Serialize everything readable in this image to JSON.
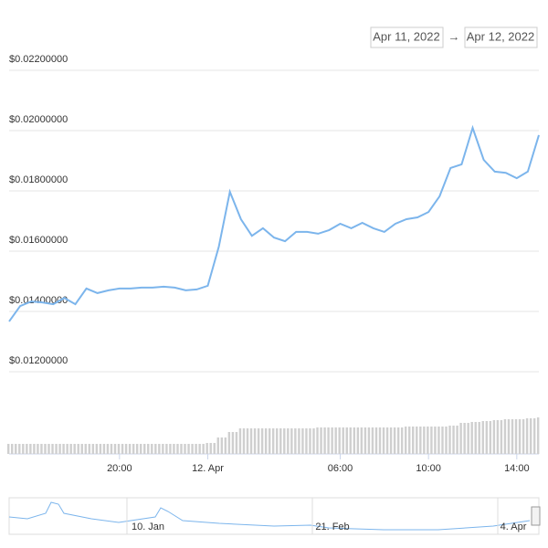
{
  "range": {
    "from": "Apr 11, 2022",
    "arrow": "→",
    "to": "Apr 12, 2022"
  },
  "chart_data": {
    "type": "line",
    "color": "#7cb5ec",
    "volume_color": "#cfcfcf",
    "categories": [
      null,
      null,
      null,
      null,
      null,
      null,
      null,
      null,
      null,
      null,
      "20:00",
      null,
      null,
      null,
      null,
      null,
      null,
      null,
      "12. Apr",
      null,
      null,
      null,
      null,
      null,
      null,
      null,
      null,
      null,
      null,
      null,
      "06:00",
      null,
      null,
      null,
      null,
      null,
      null,
      null,
      "10:00",
      null,
      null,
      null,
      null,
      null,
      null,
      null,
      "14:00",
      null,
      null
    ],
    "values": [
      0.01367,
      0.01418,
      0.01433,
      0.0143,
      0.01424,
      0.01445,
      0.01424,
      0.01476,
      0.01461,
      0.0147,
      0.01476,
      0.01476,
      0.01479,
      0.01479,
      0.01482,
      0.01479,
      0.0147,
      0.01473,
      0.01485,
      0.01615,
      0.01797,
      0.01706,
      0.01651,
      0.01676,
      0.01645,
      0.01633,
      0.01664,
      0.01664,
      0.01658,
      0.0167,
      0.01691,
      0.01676,
      0.01694,
      0.01676,
      0.01664,
      0.01691,
      0.01706,
      0.01712,
      0.0173,
      0.01782,
      0.01876,
      0.01888,
      0.02009,
      0.01903,
      0.01864,
      0.0186,
      0.01842,
      0.01864,
      0.01985
    ],
    "volume": [
      11,
      11,
      11,
      11,
      11,
      11,
      11,
      11,
      11,
      11,
      11,
      11,
      11,
      11,
      11,
      11,
      11,
      11,
      12,
      18,
      24,
      28,
      28,
      28,
      28,
      28,
      28,
      28,
      29,
      29,
      29,
      29,
      29,
      29,
      29,
      29,
      30,
      30,
      30,
      30,
      31,
      34,
      35,
      36,
      37,
      38,
      38,
      39,
      40
    ],
    "ylim": [
      0.012,
      0.022
    ],
    "yticks": [
      {
        "value": 0.012,
        "label": "$0.01200000"
      },
      {
        "value": 0.014,
        "label": "$0.01400000"
      },
      {
        "value": 0.016,
        "label": "$0.01600000"
      },
      {
        "value": 0.018,
        "label": "$0.01800000"
      },
      {
        "value": 0.02,
        "label": "$0.02000000"
      },
      {
        "value": 0.022,
        "label": "$0.02200000"
      }
    ],
    "grid": true,
    "navigator_labels": [
      "10. Jan",
      "21. Feb",
      "4. Apr"
    ]
  }
}
